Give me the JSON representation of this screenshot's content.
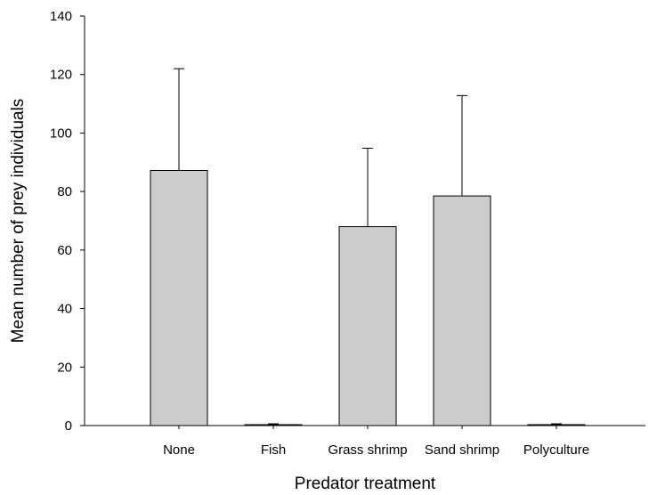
{
  "chart_data": {
    "type": "bar",
    "xlabel": "Predator treatment",
    "ylabel": "Mean number of prey individuals",
    "ylim": [
      0,
      140
    ],
    "yticks": [
      0,
      20,
      40,
      60,
      80,
      100,
      120,
      140
    ],
    "categories": [
      "None",
      "Fish",
      "Grass shrimp",
      "Sand shrimp",
      "Polyculture"
    ],
    "values": [
      87.2,
      0.3,
      68.0,
      78.5,
      0.3
    ],
    "error_upper": [
      122.0,
      0.6,
      94.8,
      112.8,
      0.6
    ],
    "error_direction": "upper",
    "bar_color": "#cccccc",
    "bar_edge_color": "#000000",
    "grid": false,
    "legend": "none"
  }
}
